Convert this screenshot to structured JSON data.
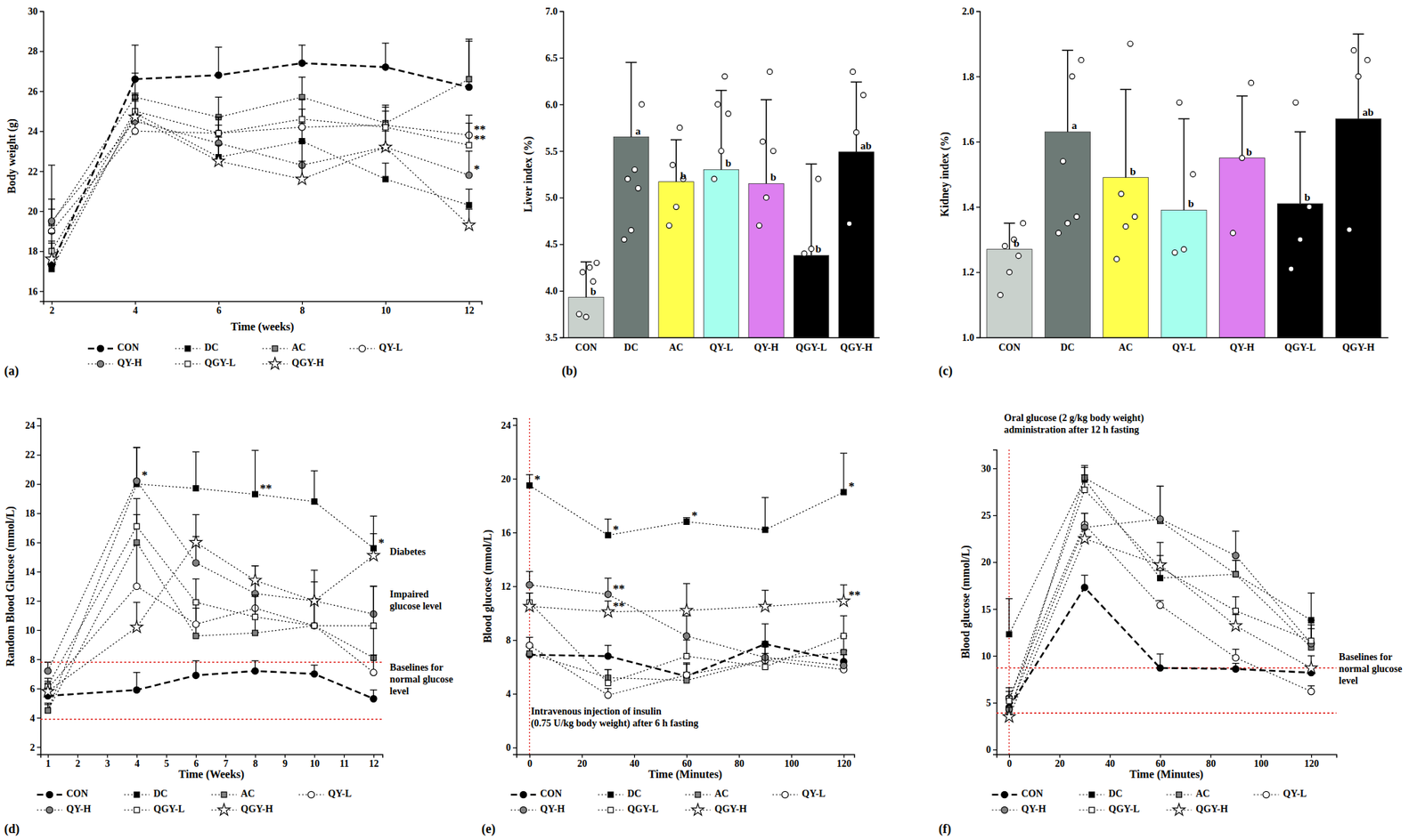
{
  "chart_data": [
    {
      "type": "line",
      "title": "(a)",
      "x_label": "Time (weeks)",
      "y_label": "Body weight (g)",
      "x": [
        2,
        4,
        6,
        8,
        10,
        12
      ],
      "xlim": [
        1.8,
        12.3
      ],
      "xticks": [
        2,
        4,
        6,
        8,
        10,
        12
      ],
      "ylim": [
        15.5,
        30
      ],
      "yticks": [
        16,
        18,
        20,
        22,
        24,
        26,
        28,
        30
      ],
      "legend": "bottom",
      "series": [
        {
          "name": "CON",
          "color": "#000000",
          "marker": "circle",
          "line_style": "dashed",
          "values": [
            17.3,
            26.6,
            26.8,
            27.4,
            27.2,
            26.2
          ],
          "errors": [
            1.2,
            1.7,
            1.4,
            0.9,
            1.2,
            2.4
          ]
        },
        {
          "name": "DC",
          "color": "#000000",
          "marker": "square",
          "line_style": "dotted",
          "values": [
            17.1,
            24.9,
            22.7,
            23.5,
            21.6,
            20.3
          ],
          "errors": [
            0.6,
            1.0,
            1.0,
            0.9,
            0.8,
            0.8
          ]
        },
        {
          "name": "AC",
          "color": "#808080",
          "marker": "square",
          "line_style": "dotted",
          "values": [
            19.4,
            25.7,
            24.7,
            25.7,
            24.4,
            26.6
          ],
          "errors": [
            1.2,
            1.2,
            1.0,
            1.0,
            0.8,
            1.9
          ]
        },
        {
          "name": "QY-L",
          "color": "#ffffff",
          "marker": "circle",
          "line_style": "dotted",
          "values": [
            19.0,
            24.0,
            23.9,
            24.2,
            24.3,
            23.8
          ],
          "errors": [
            1.1,
            0.8,
            0.8,
            0.9,
            1.0,
            1.0
          ]
        },
        {
          "name": "QY-H",
          "color": "#808080",
          "marker": "circle",
          "line_style": "dotted",
          "values": [
            19.5,
            24.5,
            23.4,
            22.3,
            23.2,
            21.8
          ],
          "errors": [
            2.8,
            1.0,
            0.9,
            1.2,
            0.9,
            1.2
          ]
        },
        {
          "name": "QGY-L",
          "color": "#ffffff",
          "marker": "square",
          "line_style": "dotted",
          "values": [
            18.0,
            25.0,
            23.9,
            24.6,
            24.2,
            23.3
          ],
          "errors": [
            0.9,
            0.8,
            0.8,
            1.0,
            0.8,
            1.1
          ]
        },
        {
          "name": "QGY-H",
          "color": "#ffffff",
          "marker": "star",
          "line_style": "dotted",
          "values": [
            17.6,
            24.7,
            22.5,
            21.6,
            23.2,
            19.3
          ],
          "errors": [
            0.8,
            0.9,
            0.8,
            0.9,
            0.8,
            0.8
          ]
        }
      ],
      "annotations": [
        {
          "text": "**",
          "series": "QY-L",
          "x": 12
        },
        {
          "text": "**",
          "series": "QGY-L",
          "x": 12
        },
        {
          "text": "*",
          "series": "QY-H",
          "x": 12
        }
      ]
    },
    {
      "type": "bar",
      "title": "(b)",
      "y_label": "Liver index (%)",
      "categories": [
        "CON",
        "DC",
        "AC",
        "QY-L",
        "QY-H",
        "QGY-L",
        "QGY-H"
      ],
      "values": [
        3.93,
        5.65,
        5.17,
        5.3,
        5.15,
        4.38,
        5.49
      ],
      "errors": [
        0.38,
        0.8,
        0.45,
        0.85,
        0.9,
        0.98,
        0.75
      ],
      "colors": [
        "#c9d1cc",
        "#6d7a76",
        "#ffff4d",
        "#a6ffee",
        "#dd7ff0",
        "#000000",
        "#000000"
      ],
      "letters": [
        "b",
        "a",
        "b",
        "b",
        "b",
        "b",
        "ab"
      ],
      "points": [
        [
          3.75,
          3.72,
          4.1,
          4.2,
          4.25,
          4.3
        ],
        [
          4.55,
          4.65,
          5.1,
          5.2,
          5.3,
          6.0
        ],
        [
          4.7,
          4.9,
          5.2,
          5.35,
          5.75
        ],
        [
          5.2,
          5.5,
          5.9,
          6.0,
          6.3
        ],
        [
          4.7,
          5.0,
          5.5,
          5.6,
          6.35
        ],
        [
          4.4,
          4.45,
          5.2
        ],
        [
          4.72,
          5.7,
          6.1,
          6.35
        ]
      ],
      "ylim": [
        3.5,
        7.0
      ],
      "yticks": [
        3.5,
        {
          "value": 4,
          "label": "4.0"
        },
        4.5,
        {
          "value": 5,
          "label": "5.0"
        },
        5.5,
        {
          "value": 6,
          "label": "6.0"
        },
        6.5,
        {
          "value": 7,
          "label": "7.0"
        }
      ]
    },
    {
      "type": "bar",
      "title": "(c)",
      "y_label": "Kidney index (%)",
      "categories": [
        "CON",
        "DC",
        "AC",
        "QY-L",
        "QY-H",
        "QGY-L",
        "QGY-H"
      ],
      "values": [
        1.27,
        1.63,
        1.49,
        1.39,
        1.55,
        1.41,
        1.67
      ],
      "errors": [
        0.08,
        0.25,
        0.27,
        0.28,
        0.19,
        0.22,
        0.26
      ],
      "colors": [
        "#c9d1cc",
        "#6d7a76",
        "#ffff4d",
        "#a6ffee",
        "#dd7ff0",
        "#000000",
        "#000000"
      ],
      "letters": [
        "b",
        "a",
        "b",
        "b",
        "b",
        "b",
        "ab"
      ],
      "points": [
        [
          1.13,
          1.2,
          1.25,
          1.28,
          1.3,
          1.35
        ],
        [
          1.32,
          1.35,
          1.37,
          1.54,
          1.8,
          1.85
        ],
        [
          1.24,
          1.34,
          1.37,
          1.44,
          1.9
        ],
        [
          1.26,
          1.27,
          1.5,
          1.72
        ],
        [
          1.32,
          1.55,
          1.78
        ],
        [
          1.21,
          1.3,
          1.4,
          1.72
        ],
        [
          1.33,
          1.8,
          1.85,
          1.88
        ]
      ],
      "ylim": [
        1.0,
        2.0
      ],
      "yticks": [
        {
          "value": 1,
          "label": "1.0"
        },
        1.2,
        1.4,
        1.6,
        1.8,
        {
          "value": 2,
          "label": "2.0"
        }
      ]
    },
    {
      "type": "line",
      "title": "(d)",
      "x_label": "Time (Weeks)",
      "y_label": "Random Blood Glucose (mmol/L)",
      "x": [
        1,
        4,
        6,
        8,
        10,
        12
      ],
      "xlim": [
        0.75,
        12.3
      ],
      "xticks": [
        1,
        2,
        3,
        4,
        5,
        6,
        7,
        8,
        9,
        10,
        11,
        12
      ],
      "ylim": [
        1.5,
        24.5
      ],
      "yticks": [
        2,
        4,
        6,
        8,
        10,
        12,
        14,
        16,
        18,
        20,
        22,
        24
      ],
      "legend": "bottom",
      "hlines": [
        7.8,
        3.9
      ],
      "series": [
        {
          "name": "CON",
          "color": "#000000",
          "marker": "circle",
          "line_style": "dashed",
          "values": [
            5.5,
            5.9,
            6.9,
            7.2,
            7.0,
            5.3
          ],
          "errors": [
            0.5,
            1.2,
            1.0,
            0.7,
            0.6,
            0.6
          ]
        },
        {
          "name": "DC",
          "color": "#000000",
          "marker": "square",
          "line_style": "dotted",
          "values": [
            4.5,
            20.0,
            19.7,
            19.3,
            18.8,
            15.6
          ],
          "errors": [
            0.5,
            2.5,
            2.5,
            3.0,
            2.1,
            2.2
          ]
        },
        {
          "name": "AC",
          "color": "#808080",
          "marker": "square",
          "line_style": "dotted",
          "values": [
            4.5,
            16.0,
            9.6,
            9.8,
            10.3,
            8.1
          ],
          "errors": [
            0.4,
            1.9,
            1.9,
            2.5,
            1.8,
            2.0
          ]
        },
        {
          "name": "QY-L",
          "color": "#ffffff",
          "marker": "circle",
          "line_style": "dotted",
          "values": [
            6.0,
            13.0,
            10.4,
            11.5,
            10.3,
            7.1
          ],
          "errors": [
            0.5,
            2.8,
            1.5,
            2.0,
            1.6,
            1.2
          ]
        },
        {
          "name": "QY-H",
          "color": "#808080",
          "marker": "circle",
          "line_style": "dotted",
          "values": [
            7.2,
            20.2,
            14.6,
            12.5,
            12.0,
            11.1
          ],
          "errors": [
            0.6,
            2.3,
            1.8,
            1.9,
            2.1,
            1.9
          ]
        },
        {
          "name": "QGY-L",
          "color": "#ffffff",
          "marker": "square",
          "line_style": "dotted",
          "values": [
            6.2,
            17.1,
            11.9,
            10.9,
            10.3,
            10.3
          ],
          "errors": [
            0.5,
            1.9,
            1.6,
            1.5,
            1.5,
            2.7
          ]
        },
        {
          "name": "QGY-H",
          "color": "#ffffff",
          "marker": "star",
          "line_style": "dotted",
          "values": [
            5.8,
            10.2,
            16.0,
            13.4,
            12.0,
            15.1
          ],
          "errors": [
            0.5,
            1.7,
            1.9,
            1.0,
            1.3,
            1.5
          ]
        }
      ],
      "annotations": [
        {
          "text": "*",
          "series": "QY-H",
          "x": 4
        },
        {
          "text": "**",
          "series": "DC",
          "x": 8
        },
        {
          "text": "*",
          "series": "DC",
          "x": 12
        }
      ],
      "notes": [
        {
          "lines": [
            "Diabetes"
          ],
          "x": 12.55,
          "y": 15.3
        },
        {
          "lines": [
            "Impaired",
            "glucose level"
          ],
          "x": 12.55,
          "y": 12.4
        },
        {
          "lines": [
            "Baselines for",
            "normal glucose",
            "level"
          ],
          "x": 12.55,
          "y": 7.4
        }
      ]
    },
    {
      "type": "line",
      "title": "(e)",
      "x_label": "Time (Minutes)",
      "y_label": "Blood glucose (mmol/L)",
      "x": [
        0,
        30,
        60,
        90,
        120
      ],
      "xlim": [
        -5,
        124
      ],
      "xticks": [
        0,
        20,
        40,
        60,
        80,
        100,
        120
      ],
      "ylim": [
        -0.5,
        24.5
      ],
      "yticks": [
        0,
        4,
        8,
        12,
        16,
        20,
        24
      ],
      "legend": "bottom",
      "vlines": [
        0
      ],
      "series": [
        {
          "name": "CON",
          "color": "#000000",
          "marker": "circle",
          "line_style": "dashed",
          "values": [
            6.9,
            6.8,
            5.3,
            7.7,
            6.4
          ],
          "errors": [
            0.6,
            0.8,
            1.0,
            1.5,
            0.8
          ]
        },
        {
          "name": "DC",
          "color": "#000000",
          "marker": "square",
          "line_style": "dotted",
          "values": [
            19.5,
            15.8,
            16.8,
            16.2,
            19.0
          ],
          "errors": [
            0.8,
            1.2,
            0.3,
            2.4,
            2.9
          ]
        },
        {
          "name": "AC",
          "color": "#808080",
          "marker": "square",
          "line_style": "dotted",
          "values": [
            7.0,
            5.2,
            5.0,
            6.5,
            7.1
          ],
          "errors": [
            0.5,
            0.6,
            0.6,
            1.0,
            1.2
          ]
        },
        {
          "name": "QY-L",
          "color": "#ffffff",
          "marker": "circle",
          "line_style": "dotted",
          "values": [
            7.6,
            3.9,
            5.4,
            6.5,
            5.8
          ],
          "errors": [
            0.6,
            0.5,
            0.8,
            1.0,
            0.6
          ]
        },
        {
          "name": "QY-H",
          "color": "#808080",
          "marker": "circle",
          "line_style": "dotted",
          "values": [
            12.1,
            11.4,
            8.3,
            6.7,
            6.1
          ],
          "errors": [
            1.0,
            1.2,
            1.5,
            1.2,
            0.8
          ]
        },
        {
          "name": "QGY-L",
          "color": "#ffffff",
          "marker": "square",
          "line_style": "dotted",
          "values": [
            10.8,
            4.8,
            6.8,
            6.0,
            8.3
          ],
          "errors": [
            0.7,
            1.0,
            1.2,
            1.0,
            1.5
          ]
        },
        {
          "name": "QGY-H",
          "color": "#ffffff",
          "marker": "star",
          "line_style": "dotted",
          "values": [
            10.5,
            10.1,
            10.2,
            10.5,
            10.9
          ],
          "errors": [
            1.0,
            0.8,
            2.0,
            1.2,
            1.2
          ]
        }
      ],
      "annotations": [
        {
          "text": "*",
          "series": "DC",
          "x": 0
        },
        {
          "text": "*",
          "series": "DC",
          "x": 30
        },
        {
          "text": "*",
          "series": "DC",
          "x": 60
        },
        {
          "text": "*",
          "series": "DC",
          "x": 120
        },
        {
          "text": "**",
          "series": "QY-H",
          "x": 30
        },
        {
          "text": "**",
          "series": "QGY-H",
          "x": 30
        },
        {
          "text": "**",
          "series": "QGY-H",
          "x": 120
        }
      ],
      "notes": [
        {
          "lines": [
            "Intravenous injection of insulin",
            "(0.75 U/kg body weight) after 6 h fasting"
          ],
          "x": 0.5,
          "y": 2.6
        }
      ]
    },
    {
      "type": "line",
      "title": "(f)",
      "x_label": "Time (Minutes)",
      "y_label": "Blood glucose (mmol/L)",
      "x": [
        0,
        30,
        60,
        90,
        120
      ],
      "xlim": [
        -5,
        130
      ],
      "xticks": [
        0,
        20,
        40,
        60,
        80,
        100,
        120
      ],
      "ylim": [
        -0.5,
        32
      ],
      "yticks": [
        0,
        5,
        10,
        15,
        20,
        25,
        30
      ],
      "legend": "bottom",
      "hlines": [
        8.7,
        3.9
      ],
      "vlines": [
        0
      ],
      "series": [
        {
          "name": "CON",
          "color": "#000000",
          "marker": "circle",
          "line_style": "dashed",
          "values": [
            4.5,
            17.3,
            8.7,
            8.6,
            8.2
          ],
          "errors": [
            1.2,
            1.3,
            1.5,
            0.6,
            0.6
          ]
        },
        {
          "name": "DC",
          "color": "#000000",
          "marker": "square",
          "line_style": "dotted",
          "values": [
            12.3,
            28.8,
            18.3,
            18.7,
            13.8
          ],
          "errors": [
            3.8,
            1.3,
            1.3,
            1.5,
            2.9
          ]
        },
        {
          "name": "AC",
          "color": "#808080",
          "marker": "square",
          "line_style": "dotted",
          "values": [
            3.8,
            29.0,
            24.4,
            18.7,
            10.9
          ],
          "errors": [
            1.5,
            1.3,
            3.7,
            1.5,
            2.0
          ]
        },
        {
          "name": "QY-L",
          "color": "#ffffff",
          "marker": "circle",
          "line_style": "dotted",
          "values": [
            5.5,
            24.0,
            15.4,
            9.8,
            6.2
          ],
          "errors": [
            1.1,
            1.2,
            0.5,
            0.9,
            0.6
          ]
        },
        {
          "name": "QY-H",
          "color": "#808080",
          "marker": "circle",
          "line_style": "dotted",
          "values": [
            4.3,
            23.7,
            24.6,
            20.7,
            11.3
          ],
          "errors": [
            1.4,
            1.5,
            3.5,
            2.6,
            2.0
          ]
        },
        {
          "name": "QGY-L",
          "color": "#ffffff",
          "marker": "square",
          "line_style": "dotted",
          "values": [
            5.2,
            27.7,
            19.4,
            14.8,
            11.6
          ],
          "errors": [
            1.0,
            1.6,
            2.7,
            1.5,
            2.2
          ]
        },
        {
          "name": "QGY-H",
          "color": "#ffffff",
          "marker": "star",
          "line_style": "dotted",
          "values": [
            3.5,
            22.5,
            19.7,
            13.2,
            8.7
          ],
          "errors": [
            1.0,
            1.0,
            1.0,
            1.2,
            1.3
          ]
        }
      ],
      "notes": [
        {
          "lines": [
            "Oral glucose (2 g/kg body weight)",
            "administration after 12 h fasting"
          ],
          "x": -2,
          "y": 35.3
        },
        {
          "lines": [
            "Baselines for",
            "normal glucose",
            "level"
          ],
          "x": 131,
          "y": 9.8
        }
      ]
    }
  ]
}
